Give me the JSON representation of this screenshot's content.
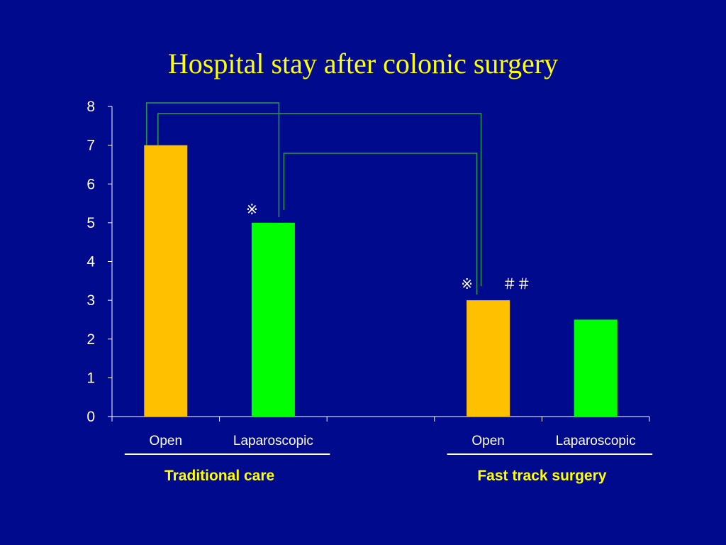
{
  "slide": {
    "title": "Hospital stay after colonic surgery"
  },
  "colors": {
    "background": "#000a8c",
    "open": "#ffc000",
    "laparoscopic": "#00ff00",
    "bracket": "#2e9a4a",
    "axis": "#ffffff",
    "title": "#ffff00"
  },
  "chart_data": {
    "type": "bar",
    "title": "Hospital stay after colonic surgery",
    "xlabel": "",
    "ylabel": "",
    "ylim": [
      0,
      8
    ],
    "yticks": [
      0,
      1,
      2,
      3,
      4,
      5,
      6,
      7,
      8
    ],
    "grid": false,
    "legend": "none",
    "categories": [
      "Open",
      "Laparoscopic",
      "",
      "Open",
      "Laparoscopic"
    ],
    "values": [
      7,
      5,
      null,
      3,
      2.5
    ],
    "bar_colors": [
      "#ffc000",
      "#00ff00",
      null,
      "#ffc000",
      "#00ff00"
    ],
    "groups": [
      {
        "label": "Traditional care",
        "categories": [
          0,
          1
        ]
      },
      {
        "label": "Fast track surgery",
        "categories": [
          3,
          4
        ]
      }
    ],
    "annotations": [
      {
        "text": "※",
        "bar": 1
      },
      {
        "text": "※",
        "bar": 3
      },
      {
        "text": "＃＃",
        "bar": 3
      }
    ],
    "comparisons": [
      {
        "from": 0,
        "to": 1
      },
      {
        "from": 0,
        "to": 3
      },
      {
        "from": 1,
        "to": 3
      }
    ]
  }
}
